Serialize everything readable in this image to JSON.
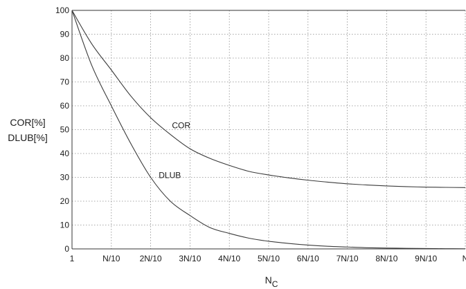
{
  "chart_data": {
    "type": "line",
    "title": "",
    "ylabel_lines": [
      "COR[%]",
      "DLUB[%]"
    ],
    "xlabel": {
      "main": "N",
      "subscript": "C"
    },
    "x_ticks": [
      "1",
      "N/10",
      "2N/10",
      "3N/10",
      "4N/10",
      "5N/10",
      "6N/10",
      "7N/10",
      "8N/10",
      "9N/10",
      "N"
    ],
    "ylim": [
      0,
      100
    ],
    "y_ticks": [
      "0",
      "10",
      "20",
      "30",
      "40",
      "50",
      "60",
      "70",
      "80",
      "90",
      "100"
    ],
    "grid": true,
    "x_fraction": [
      0,
      0.05,
      0.1,
      0.15,
      0.2,
      0.25,
      0.3,
      0.35,
      0.4,
      0.45,
      0.5,
      0.55,
      0.6,
      0.65,
      0.7,
      0.75,
      0.8,
      0.85,
      0.9,
      0.95,
      1.0
    ],
    "series": [
      {
        "name": "COR",
        "values": [
          100,
          86,
          75,
          64,
          55,
          48,
          42,
          38,
          35,
          32.5,
          31,
          29.8,
          28.8,
          28,
          27.3,
          26.8,
          26.4,
          26.1,
          25.9,
          25.8,
          25.7
        ]
      },
      {
        "name": "DLUB",
        "values": [
          100,
          77,
          60,
          44,
          30,
          20,
          14,
          9,
          6.5,
          4.5,
          3.2,
          2.3,
          1.6,
          1.1,
          0.8,
          0.5,
          0.35,
          0.25,
          0.15,
          0.1,
          0.05
        ]
      }
    ]
  }
}
